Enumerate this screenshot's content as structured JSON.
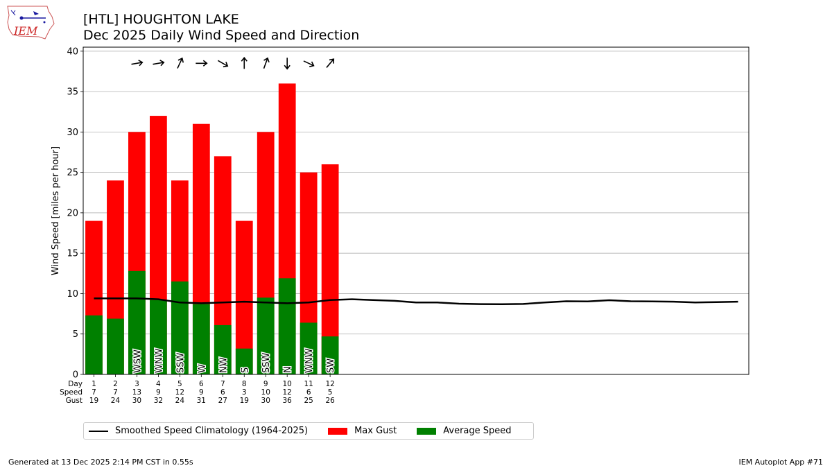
{
  "header": {
    "title_line1": "[HTL] HOUGHTON LAKE",
    "title_line2": "Dec 2025 Daily Wind Speed and Direction"
  },
  "logo": {
    "text": "IEM"
  },
  "footer": {
    "left": "Generated at 13 Dec 2025 2:14 PM CST in 0.55s",
    "right": "IEM Autoplot App #71"
  },
  "legend": {
    "items": [
      {
        "label": "Smoothed Speed Climatology (1964-2025)",
        "color": "#000000",
        "kind": "line"
      },
      {
        "label": "Max Gust",
        "color": "#ff0000",
        "kind": "box"
      },
      {
        "label": "Average Speed",
        "color": "#008000",
        "kind": "box"
      }
    ]
  },
  "chart_data": {
    "type": "bar",
    "ylabel": "Wind Speed [miles per hour]",
    "ylim": [
      0,
      40.5
    ],
    "xlim": [
      0.5,
      31.5
    ],
    "yticks": [
      0,
      5,
      10,
      15,
      20,
      25,
      30,
      35,
      40
    ],
    "grid": "horizontal",
    "row_labels": [
      "Day",
      "Speed",
      "Gust"
    ],
    "days": [
      1,
      2,
      3,
      4,
      5,
      6,
      7,
      8,
      9,
      10,
      11,
      12
    ],
    "avg_speed_display": [
      7,
      7,
      13,
      9,
      12,
      9,
      6,
      3,
      10,
      12,
      6,
      5
    ],
    "avg_speed": [
      7.3,
      6.9,
      12.8,
      9.2,
      11.5,
      8.7,
      6.1,
      3.2,
      9.5,
      11.9,
      6.4,
      4.7
    ],
    "max_gust": [
      19,
      24,
      30,
      32,
      24,
      31,
      27,
      19,
      30,
      36,
      25,
      26
    ],
    "direction_labels": [
      "",
      "",
      "WSW",
      "WNW",
      "SSW",
      "W",
      "NW",
      "S",
      "SSW",
      "N",
      "WNW",
      "SW"
    ],
    "arrow_angles_deg": [
      null,
      null,
      80,
      80,
      25,
      90,
      120,
      0,
      20,
      180,
      115,
      40
    ],
    "climatology": {
      "name": "Smoothed Speed Climatology (1964-2025)",
      "x": [
        1,
        2,
        3,
        4,
        5,
        6,
        7,
        8,
        9,
        10,
        11,
        12,
        13,
        14,
        15,
        16,
        17,
        18,
        19,
        20,
        21,
        22,
        23,
        24,
        25,
        26,
        27,
        28,
        29,
        30,
        31
      ],
      "y": [
        9.4,
        9.4,
        9.4,
        9.3,
        8.9,
        8.8,
        8.9,
        9.0,
        8.9,
        8.8,
        8.9,
        9.2,
        9.3,
        9.2,
        9.1,
        8.9,
        8.9,
        8.75,
        8.7,
        8.68,
        8.72,
        8.9,
        9.05,
        9.03,
        9.18,
        9.05,
        9.03,
        9.0,
        8.9,
        8.95,
        9.0
      ]
    },
    "colors": {
      "gust": "#ff0000",
      "avg": "#008000",
      "climo": "#000000"
    }
  }
}
